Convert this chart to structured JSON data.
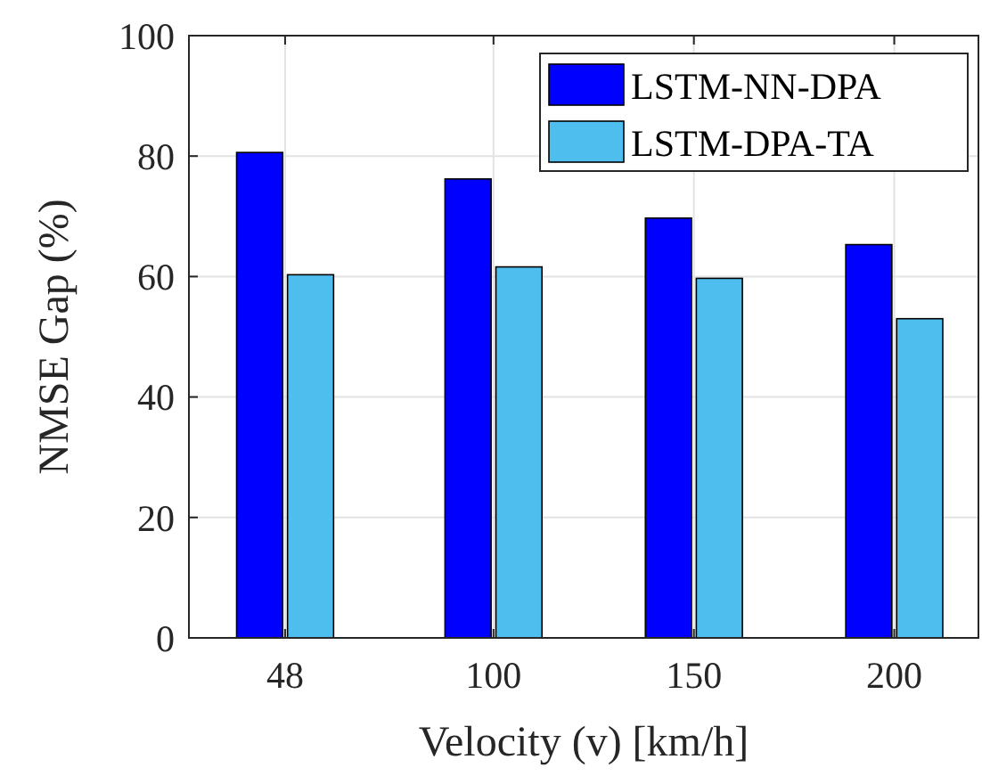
{
  "chart_data": {
    "type": "bar",
    "xlabel": "Velocity (v) [km/h]",
    "ylabel": "NMSE Gap (%)",
    "x": [
      48,
      100,
      150,
      200
    ],
    "xlim": [
      24,
      221
    ],
    "xticks": [
      48,
      100,
      150,
      200
    ],
    "ylim": [
      0,
      100
    ],
    "yticks": [
      0,
      20,
      40,
      60,
      80,
      100
    ],
    "series": [
      {
        "name": "LSTM-NN-DPA",
        "color": "#0000ff",
        "values": [
          80.6,
          76.2,
          69.7,
          65.3
        ]
      },
      {
        "name": "LSTM-DPA-TA",
        "color": "#4dbeee",
        "values": [
          60.3,
          61.6,
          59.7,
          53.0
        ]
      }
    ],
    "grid": true,
    "legend": "top right"
  }
}
